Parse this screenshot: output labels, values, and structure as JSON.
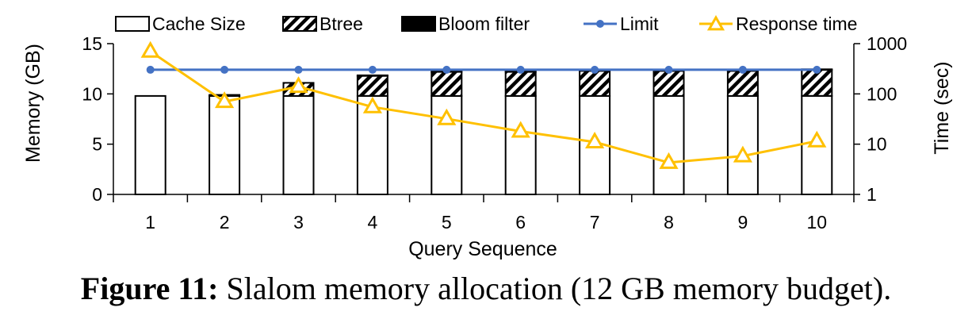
{
  "chart_data": {
    "type": "bar",
    "categories": [
      "1",
      "2",
      "3",
      "4",
      "5",
      "6",
      "7",
      "8",
      "9",
      "10"
    ],
    "xlabel": "Query Sequence",
    "ylabel": "Memory (GB)",
    "y2label": "Time (sec)",
    "ylim": [
      0,
      15
    ],
    "yticks": [
      "0",
      "5",
      "10",
      "15"
    ],
    "y2lim": [
      1,
      1000
    ],
    "y2scale": "log",
    "y2ticks": [
      "1",
      "10",
      "100",
      "1000"
    ],
    "stacked": true,
    "legend_position": "top",
    "series": [
      {
        "name": "Cache Size",
        "type": "bar",
        "fill": "white",
        "values": [
          9.8,
          9.8,
          9.8,
          9.8,
          9.8,
          9.8,
          9.8,
          9.8,
          9.8,
          9.8
        ]
      },
      {
        "name": "Btree",
        "type": "bar",
        "fill": "diagonal-hatch",
        "values": [
          0,
          0.1,
          1.3,
          2.0,
          2.4,
          2.4,
          2.5,
          2.5,
          2.5,
          2.6
        ]
      },
      {
        "name": "Bloom filter",
        "type": "bar",
        "fill": "black",
        "values": [
          0,
          0,
          0,
          0.05,
          0.05,
          0.05,
          0.05,
          0.05,
          0.05,
          0.05
        ]
      },
      {
        "name": "Limit",
        "type": "line",
        "axis": "left",
        "color": "#4472C4",
        "marker": "circle",
        "values": [
          12.4,
          12.4,
          12.4,
          12.4,
          12.4,
          12.4,
          12.4,
          12.4,
          12.4,
          12.4
        ]
      },
      {
        "name": "Response time",
        "type": "line",
        "axis": "right",
        "color": "#FFC000",
        "marker": "triangle",
        "values": [
          700,
          70,
          140,
          55,
          32,
          18,
          11,
          4.3,
          5.8,
          11.5
        ]
      }
    ]
  },
  "caption": {
    "label": "Figure 11:",
    "text": " Slalom memory allocation (12 GB memory budget)."
  }
}
